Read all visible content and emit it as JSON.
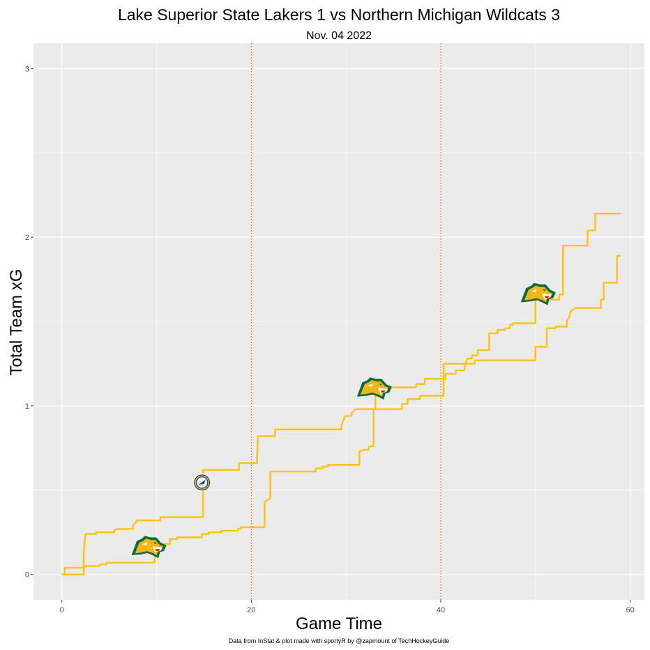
{
  "chart_data": {
    "type": "line",
    "title": "Lake Superior State Lakers 1 vs Northern Michigan Wildcats 3",
    "subtitle": "Nov. 04 2022",
    "xlabel": "Game Time",
    "ylabel": "Total Team xG",
    "caption": "Data from InStat & plot made with sportyR by @zapmount of TechHockeyGuide",
    "xlim": [
      -3,
      61.5
    ],
    "ylim": [
      -0.15,
      3.15
    ],
    "x_ticks": [
      0,
      20,
      40,
      60
    ],
    "y_ticks": [
      0,
      1,
      2,
      3
    ],
    "period_lines": [
      20,
      40
    ],
    "grid": true,
    "line_color": "#FFC20E",
    "period_line_color": "#FF3B30",
    "panel_color": "#EBEBEB",
    "series": [
      {
        "points": [
          [
            0,
            0
          ],
          [
            2.3,
            0
          ],
          [
            2.3,
            0.12
          ],
          [
            2.4,
            0.19
          ],
          [
            2.5,
            0.24
          ],
          [
            3.6,
            0.24
          ],
          [
            3.6,
            0.25
          ],
          [
            5.5,
            0.25
          ],
          [
            5.5,
            0.26
          ],
          [
            5.8,
            0.27
          ],
          [
            7.5,
            0.27
          ],
          [
            7.5,
            0.29
          ],
          [
            7.8,
            0.31
          ],
          [
            7.9,
            0.32
          ],
          [
            10.4,
            0.32
          ],
          [
            10.4,
            0.34
          ],
          [
            14.9,
            0.34
          ],
          [
            14.9,
            0.55
          ],
          [
            14.9,
            0.62
          ],
          [
            18.7,
            0.62
          ],
          [
            18.7,
            0.66
          ],
          [
            20.6,
            0.66
          ],
          [
            20.6,
            0.68
          ],
          [
            20.7,
            0.82
          ],
          [
            22.5,
            0.82
          ],
          [
            22.5,
            0.86
          ],
          [
            29.5,
            0.86
          ],
          [
            29.5,
            0.88
          ],
          [
            29.7,
            0.91
          ],
          [
            29.9,
            0.94
          ],
          [
            30.6,
            0.94
          ],
          [
            30.6,
            0.96
          ],
          [
            31,
            0.98
          ],
          [
            33.1,
            0.98
          ],
          [
            33.1,
            1.08
          ],
          [
            33.5,
            1.1
          ],
          [
            33.5,
            1.11
          ],
          [
            37.4,
            1.11
          ],
          [
            37.4,
            1.13
          ],
          [
            38.3,
            1.13
          ],
          [
            38.3,
            1.16
          ],
          [
            40.5,
            1.16
          ],
          [
            40.5,
            1.19
          ],
          [
            41.6,
            1.19
          ],
          [
            41.6,
            1.21
          ],
          [
            42.5,
            1.21
          ],
          [
            42.5,
            1.23
          ],
          [
            42.8,
            1.28
          ],
          [
            43.3,
            1.28
          ],
          [
            43.3,
            1.3
          ],
          [
            43.9,
            1.3
          ],
          [
            43.9,
            1.33
          ],
          [
            45.1,
            1.33
          ],
          [
            45.1,
            1.43
          ],
          [
            46,
            1.43
          ],
          [
            46,
            1.45
          ],
          [
            46.8,
            1.45
          ],
          [
            46.8,
            1.46
          ],
          [
            47.3,
            1.46
          ],
          [
            47.3,
            1.48
          ],
          [
            47.6,
            1.48
          ],
          [
            47.6,
            1.49
          ],
          [
            50,
            1.49
          ],
          [
            50,
            1.63
          ],
          [
            52.5,
            1.63
          ],
          [
            52.5,
            1.66
          ],
          [
            52.9,
            1.66
          ],
          [
            52.9,
            1.95
          ],
          [
            55.5,
            1.95
          ],
          [
            55.5,
            2.04
          ],
          [
            56.3,
            2.04
          ],
          [
            56.3,
            2.14
          ],
          [
            59,
            2.14
          ]
        ]
      },
      {
        "points": [
          [
            0,
            0
          ],
          [
            0.3,
            0
          ],
          [
            0.3,
            0.04
          ],
          [
            2.4,
            0.04
          ],
          [
            2.4,
            0.05
          ],
          [
            4,
            0.05
          ],
          [
            4,
            0.06
          ],
          [
            4.7,
            0.06
          ],
          [
            4.7,
            0.07
          ],
          [
            9.8,
            0.07
          ],
          [
            9.8,
            0.16
          ],
          [
            10.1,
            0.18
          ],
          [
            11.4,
            0.18
          ],
          [
            11.4,
            0.21
          ],
          [
            12.2,
            0.21
          ],
          [
            12.2,
            0.22
          ],
          [
            14.8,
            0.22
          ],
          [
            14.8,
            0.24
          ],
          [
            15.5,
            0.24
          ],
          [
            15.5,
            0.25
          ],
          [
            16.8,
            0.25
          ],
          [
            16.8,
            0.26
          ],
          [
            18.6,
            0.26
          ],
          [
            18.6,
            0.27
          ],
          [
            18.9,
            0.27
          ],
          [
            18.9,
            0.28
          ],
          [
            21.4,
            0.28
          ],
          [
            21.4,
            0.43
          ],
          [
            21.7,
            0.44
          ],
          [
            21.9,
            0.45
          ],
          [
            22,
            0.45
          ],
          [
            22,
            0.61
          ],
          [
            26.8,
            0.61
          ],
          [
            26.8,
            0.63
          ],
          [
            27.5,
            0.63
          ],
          [
            27.5,
            0.64
          ],
          [
            28.1,
            0.64
          ],
          [
            28.1,
            0.65
          ],
          [
            31.4,
            0.65
          ],
          [
            31.4,
            0.73
          ],
          [
            31.9,
            0.74
          ],
          [
            32.4,
            0.74
          ],
          [
            32.4,
            0.76
          ],
          [
            32.9,
            0.76
          ],
          [
            32.9,
            0.98
          ],
          [
            35.9,
            0.98
          ],
          [
            35.9,
            1.01
          ],
          [
            36.5,
            1.01
          ],
          [
            36.5,
            1.04
          ],
          [
            37.8,
            1.04
          ],
          [
            37.8,
            1.06
          ],
          [
            40.3,
            1.06
          ],
          [
            40.3,
            1.25
          ],
          [
            43.6,
            1.25
          ],
          [
            43.6,
            1.27
          ],
          [
            50,
            1.27
          ],
          [
            50,
            1.35
          ],
          [
            51.2,
            1.35
          ],
          [
            51.2,
            1.46
          ],
          [
            52.1,
            1.46
          ],
          [
            52.1,
            1.47
          ],
          [
            53.3,
            1.47
          ],
          [
            53.3,
            1.5
          ],
          [
            53.6,
            1.53
          ],
          [
            53.7,
            1.56
          ],
          [
            54.2,
            1.58
          ],
          [
            56.9,
            1.58
          ],
          [
            56.9,
            1.63
          ],
          [
            57.2,
            1.63
          ],
          [
            57.2,
            1.73
          ],
          [
            58.6,
            1.73
          ],
          [
            58.6,
            1.89
          ],
          [
            59,
            1.89
          ]
        ]
      }
    ],
    "goals": [
      {
        "team": "Northern Michigan Wildcats",
        "x": 9.2,
        "y": 0.155,
        "logo": "wildcats-logo-icon"
      },
      {
        "team": "Lake Superior State Lakers",
        "x": 14.8,
        "y": 0.545,
        "logo": "lakers-logo-icon"
      },
      {
        "team": "Northern Michigan Wildcats",
        "x": 33.0,
        "y": 1.095,
        "logo": "wildcats-logo-icon"
      },
      {
        "team": "Northern Michigan Wildcats",
        "x": 50.3,
        "y": 1.655,
        "logo": "wildcats-logo-icon"
      }
    ]
  }
}
